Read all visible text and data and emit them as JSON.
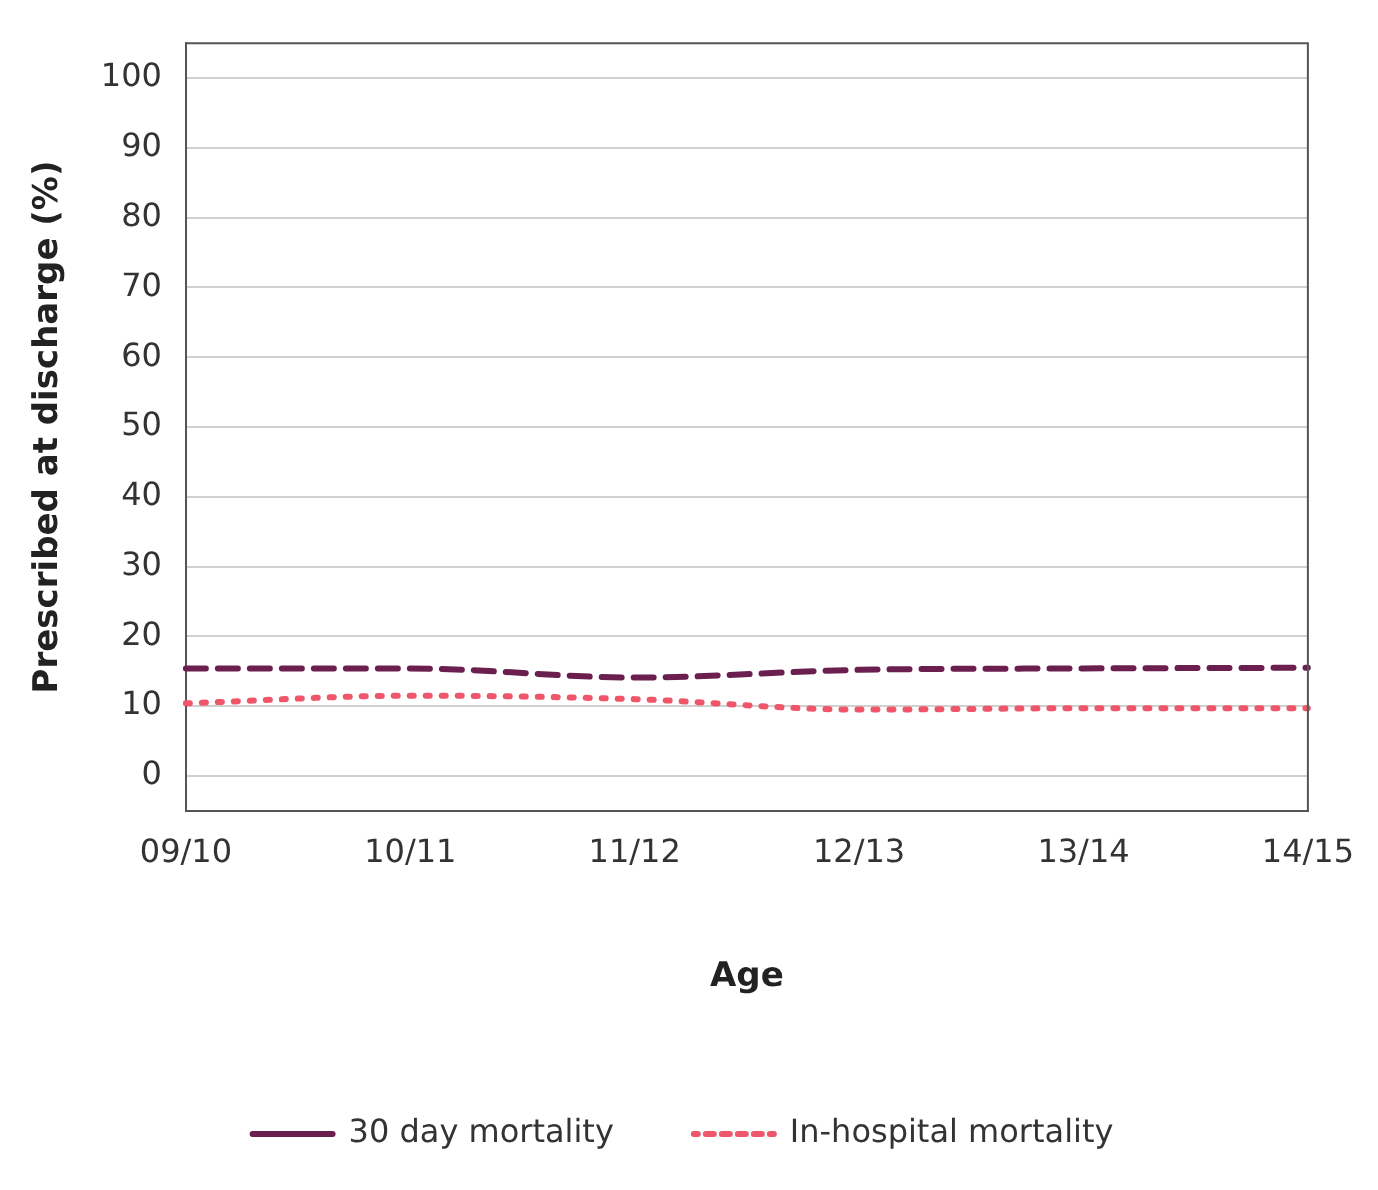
{
  "chart_data": {
    "type": "line",
    "xlabel": "Age",
    "ylabel": "Prescribed at discharge (%)",
    "categories": [
      "09/10",
      "10/11",
      "11/12",
      "12/13",
      "13/14",
      "14/15"
    ],
    "series": [
      {
        "name": "30 day mortality",
        "color": "#6b1f4f",
        "line_style": "dashed",
        "values": [
          15.4,
          15.4,
          14.1,
          15.2,
          15.4,
          15.5
        ]
      },
      {
        "name": "In-hospital mortality",
        "color": "#f0566a",
        "line_style": "dotted",
        "values": [
          10.4,
          11.5,
          11.0,
          9.5,
          9.7,
          9.7
        ]
      }
    ],
    "ylim": [
      -5,
      105
    ],
    "yticks": [
      0,
      10,
      20,
      30,
      40,
      50,
      60,
      70,
      80,
      90,
      100
    ],
    "grid": "y",
    "legend": "bottom",
    "marker": "none"
  }
}
